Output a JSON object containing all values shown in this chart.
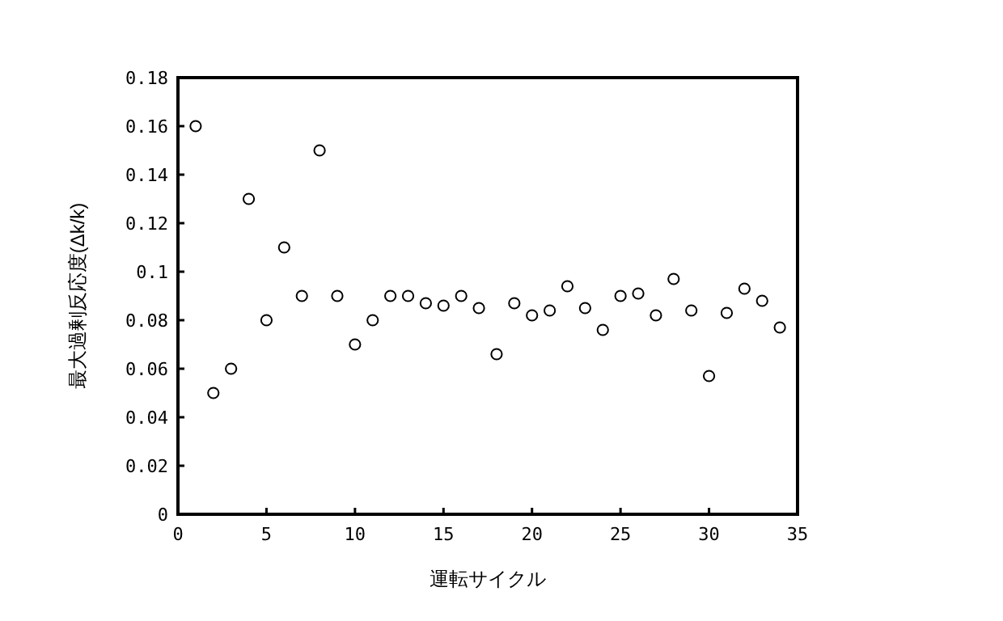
{
  "chart_data": {
    "type": "scatter",
    "xlabel": "運転サイクル",
    "ylabel": "最大過剰反応度(Δk/k)",
    "x": [
      1,
      2,
      3,
      4,
      5,
      6,
      7,
      8,
      9,
      10,
      11,
      12,
      13,
      14,
      15,
      16,
      17,
      18,
      19,
      20,
      21,
      22,
      23,
      24,
      25,
      26,
      27,
      28,
      29,
      30,
      31,
      32,
      33,
      34
    ],
    "values": [
      0.16,
      0.05,
      0.06,
      0.13,
      0.08,
      0.11,
      0.09,
      0.15,
      0.09,
      0.07,
      0.08,
      0.09,
      0.09,
      0.087,
      0.086,
      0.09,
      0.085,
      0.066,
      0.087,
      0.082,
      0.084,
      0.094,
      0.085,
      0.076,
      0.09,
      0.091,
      0.082,
      0.097,
      0.084,
      0.057,
      0.083,
      0.093,
      0.088,
      0.077
    ],
    "color": "#000000",
    "marker": "circle",
    "xlim": [
      0,
      35
    ],
    "xticks": [
      0,
      5,
      10,
      15,
      20,
      25,
      30,
      35
    ],
    "ylim": [
      0,
      0.18
    ],
    "yticks": [
      0,
      0.02,
      0.04,
      0.06,
      0.08,
      0.1,
      0.12,
      0.14,
      0.16,
      0.18
    ]
  }
}
